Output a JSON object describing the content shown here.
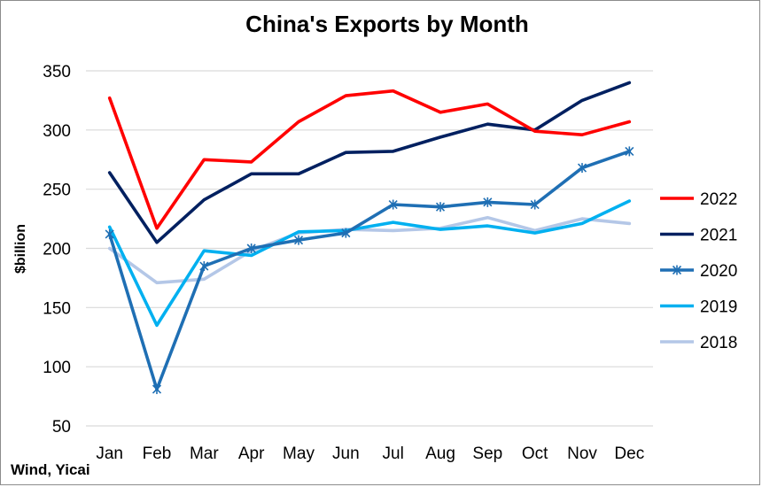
{
  "chart_data": {
    "type": "line",
    "title": "China's Exports by Month",
    "ylabel": "$billion",
    "xlabel": "",
    "categories": [
      "Jan",
      "Feb",
      "Mar",
      "Apr",
      "May",
      "Jun",
      "Jul",
      "Aug",
      "Sep",
      "Oct",
      "Nov",
      "Dec"
    ],
    "ylim": [
      50,
      350
    ],
    "yticks": [
      50,
      100,
      150,
      200,
      250,
      300,
      350
    ],
    "grid": true,
    "legend": "right",
    "series": [
      {
        "name": "2022",
        "color": "#ff0000",
        "marker": "none",
        "values": [
          327,
          217,
          275,
          273,
          307,
          329,
          333,
          315,
          322,
          299,
          296,
          307
        ]
      },
      {
        "name": "2021",
        "color": "#002060",
        "marker": "none",
        "values": [
          264,
          205,
          241,
          263,
          263,
          281,
          282,
          294,
          305,
          300,
          325,
          340
        ]
      },
      {
        "name": "2020",
        "color": "#1f6fb4",
        "marker": "star",
        "values": [
          212,
          81,
          185,
          200,
          207,
          213,
          237,
          235,
          239,
          237,
          268,
          282
        ]
      },
      {
        "name": "2019",
        "color": "#00b0f0",
        "marker": "none",
        "values": [
          218,
          135,
          198,
          194,
          214,
          215,
          222,
          216,
          219,
          213,
          221,
          240
        ]
      },
      {
        "name": "2018",
        "color": "#b4c7e7",
        "marker": "none",
        "values": [
          200,
          171,
          174,
          198,
          213,
          216,
          215,
          217,
          226,
          215,
          225,
          221
        ]
      }
    ]
  },
  "source": "Wind, Yicai"
}
